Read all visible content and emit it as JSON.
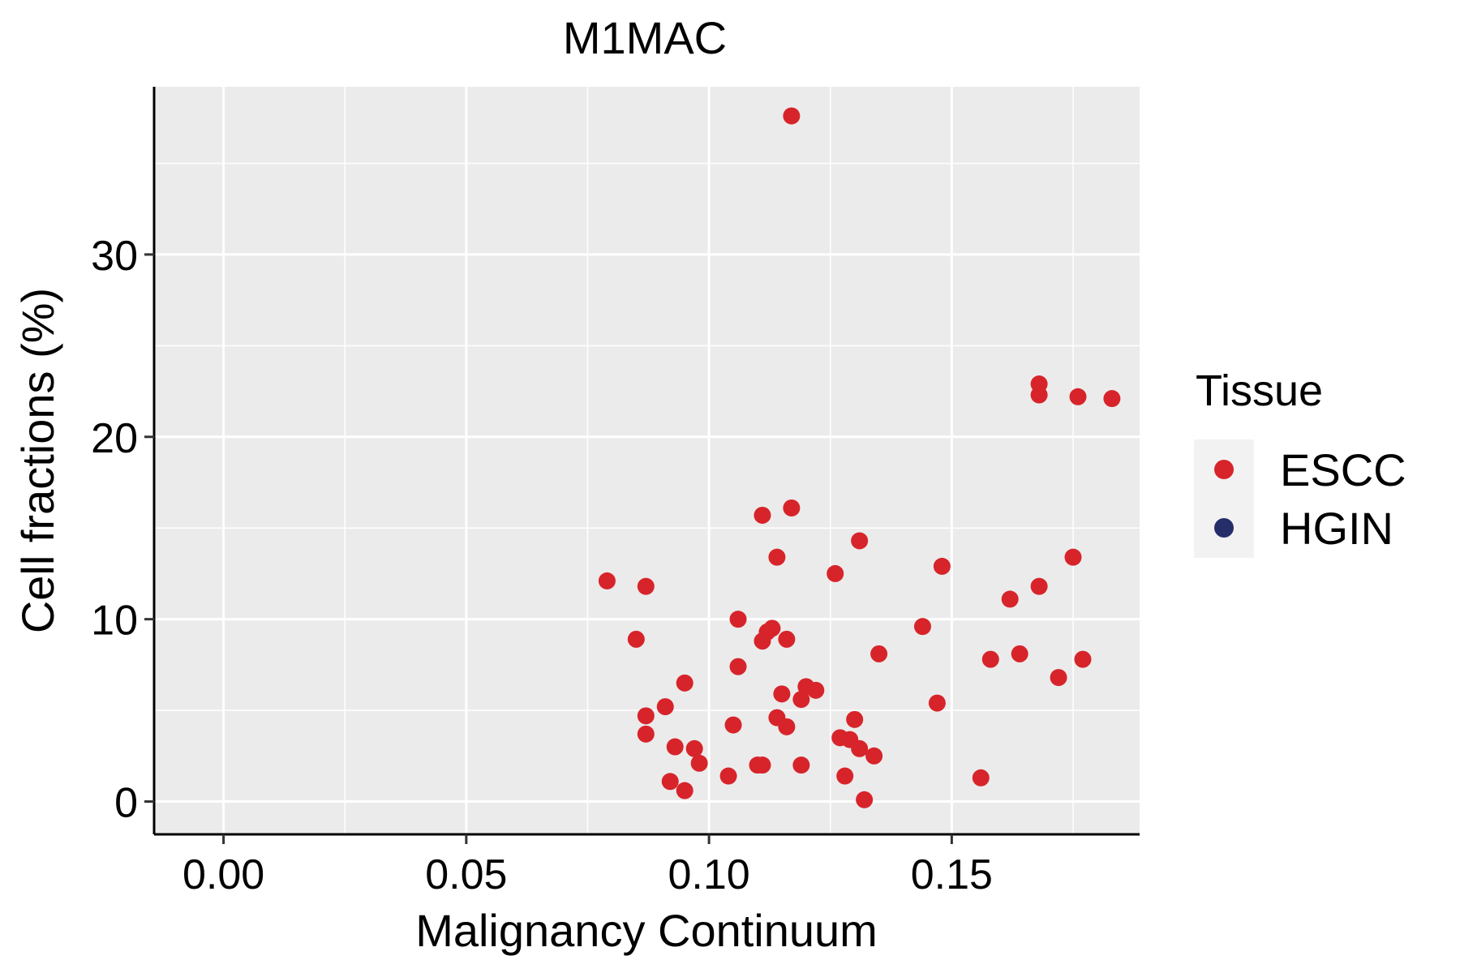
{
  "chart_data": {
    "type": "scatter",
    "title": "M1MAC",
    "xlabel": "Malignancy Continuum",
    "ylabel": "Cell fractions (%)",
    "xlim": [
      -0.0143,
      0.1887
    ],
    "ylim": [
      -1.8,
      39.2
    ],
    "x_ticks": [
      0.0,
      0.05,
      0.1,
      0.15
    ],
    "x_tick_labels": [
      "0.00",
      "0.05",
      "0.10",
      "0.15"
    ],
    "y_ticks": [
      0,
      10,
      20,
      30
    ],
    "y_tick_labels": [
      "0",
      "10",
      "20",
      "30"
    ],
    "x_minor_ticks": [
      0.025,
      0.075,
      0.125,
      0.175
    ],
    "y_minor_ticks": [
      5,
      15,
      25,
      35
    ],
    "grid": true,
    "legend": {
      "title": "Tissue",
      "position": "right",
      "entries": [
        {
          "label": "ESCC",
          "color": "#d7242a"
        },
        {
          "label": "HGIN",
          "color": "#262e6a"
        }
      ]
    },
    "series": [
      {
        "name": "ESCC",
        "color": "#d7242a",
        "points": [
          [
            0.117,
            37.6
          ],
          [
            0.168,
            22.9
          ],
          [
            0.168,
            22.3
          ],
          [
            0.176,
            22.2
          ],
          [
            0.183,
            22.1
          ],
          [
            0.117,
            16.1
          ],
          [
            0.111,
            15.7
          ],
          [
            0.131,
            14.3
          ],
          [
            0.114,
            13.4
          ],
          [
            0.175,
            13.4
          ],
          [
            0.148,
            12.9
          ],
          [
            0.126,
            12.5
          ],
          [
            0.079,
            12.1
          ],
          [
            0.087,
            11.8
          ],
          [
            0.168,
            11.8
          ],
          [
            0.162,
            11.1
          ],
          [
            0.106,
            10.0
          ],
          [
            0.144,
            9.6
          ],
          [
            0.112,
            9.3
          ],
          [
            0.113,
            9.5
          ],
          [
            0.085,
            8.9
          ],
          [
            0.111,
            8.8
          ],
          [
            0.116,
            8.9
          ],
          [
            0.135,
            8.1
          ],
          [
            0.164,
            8.1
          ],
          [
            0.158,
            7.8
          ],
          [
            0.177,
            7.8
          ],
          [
            0.106,
            7.4
          ],
          [
            0.172,
            6.8
          ],
          [
            0.095,
            6.5
          ],
          [
            0.12,
            6.3
          ],
          [
            0.122,
            6.1
          ],
          [
            0.115,
            5.9
          ],
          [
            0.119,
            5.6
          ],
          [
            0.147,
            5.4
          ],
          [
            0.091,
            5.2
          ],
          [
            0.087,
            4.7
          ],
          [
            0.114,
            4.6
          ],
          [
            0.13,
            4.5
          ],
          [
            0.105,
            4.2
          ],
          [
            0.116,
            4.1
          ],
          [
            0.087,
            3.7
          ],
          [
            0.127,
            3.5
          ],
          [
            0.129,
            3.4
          ],
          [
            0.093,
            3.0
          ],
          [
            0.097,
            2.9
          ],
          [
            0.131,
            2.9
          ],
          [
            0.134,
            2.5
          ],
          [
            0.098,
            2.1
          ],
          [
            0.11,
            2.0
          ],
          [
            0.111,
            2.0
          ],
          [
            0.119,
            2.0
          ],
          [
            0.104,
            1.4
          ],
          [
            0.128,
            1.4
          ],
          [
            0.156,
            1.3
          ],
          [
            0.092,
            1.1
          ],
          [
            0.095,
            0.6
          ],
          [
            0.132,
            0.1
          ]
        ]
      },
      {
        "name": "HGIN",
        "color": "#262e6a",
        "points": []
      }
    ]
  }
}
